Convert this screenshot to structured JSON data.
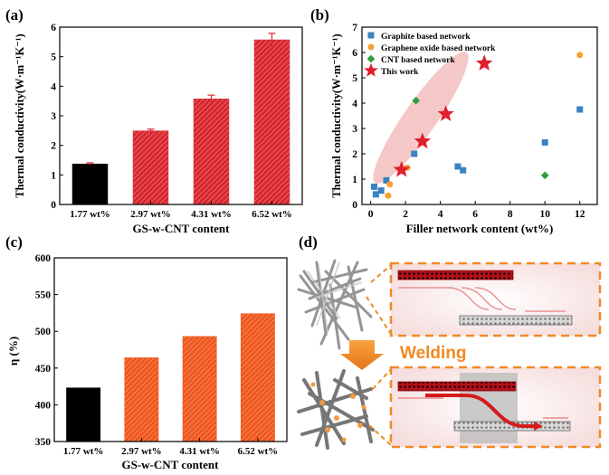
{
  "chart_data": [
    {
      "panel": "(a)",
      "type": "bar",
      "categories": [
        "1.77 wt%",
        "2.97 wt%",
        "4.31 wt%",
        "6.52 wt%"
      ],
      "values": [
        1.37,
        2.49,
        3.57,
        5.57
      ],
      "errors": [
        0.04,
        0.06,
        0.13,
        0.22
      ],
      "colors": [
        "#000000",
        "#d9262e",
        "#d9262e",
        "#d9262e"
      ],
      "xlabel": "GS-w-CNT content",
      "ylabel": "Thermal conductivity(W·m⁻¹K⁻¹)",
      "ylim": [
        0,
        6
      ],
      "yticks": [
        "0",
        "1",
        "2",
        "3",
        "4",
        "5",
        "6"
      ]
    },
    {
      "panel": "(b)",
      "type": "scatter",
      "xlabel": "Filler network content (wt%)",
      "ylabel": "Thermal conductivity(W·m⁻¹K⁻¹)",
      "xlim": [
        -0.5,
        13
      ],
      "ylim": [
        0,
        7
      ],
      "xticks": [
        "0",
        "2",
        "4",
        "6",
        "8",
        "10",
        "12"
      ],
      "yticks": [
        "0",
        "1",
        "2",
        "3",
        "4",
        "5",
        "6",
        "7"
      ],
      "legend_position": "top-left",
      "series": [
        {
          "name": "Graphite based network",
          "marker": "square",
          "color": "#3b82c4",
          "points": [
            [
              0.2,
              0.7
            ],
            [
              0.3,
              0.4
            ],
            [
              0.6,
              0.55
            ],
            [
              0.9,
              0.95
            ],
            [
              2.5,
              2.0
            ],
            [
              5.0,
              1.5
            ],
            [
              5.3,
              1.35
            ],
            [
              10.0,
              2.45
            ],
            [
              12.0,
              3.75
            ]
          ]
        },
        {
          "name": "Graphene oxide based network",
          "marker": "circle",
          "color": "#f5a030",
          "points": [
            [
              1.0,
              0.35
            ],
            [
              1.1,
              0.8
            ],
            [
              2.1,
              1.45
            ],
            [
              12.0,
              5.9
            ]
          ]
        },
        {
          "name": "CNT based network",
          "marker": "diamond",
          "color": "#2e9e3e",
          "points": [
            [
              1.8,
              1.35
            ],
            [
              2.6,
              4.1
            ],
            [
              10.0,
              1.15
            ]
          ]
        },
        {
          "name": "This work",
          "marker": "star",
          "color": "#e0202a",
          "points": [
            [
              1.77,
              1.37
            ],
            [
              2.97,
              2.49
            ],
            [
              4.31,
              3.57
            ],
            [
              6.52,
              5.57
            ]
          ]
        }
      ]
    },
    {
      "panel": "(c)",
      "type": "bar",
      "categories": [
        "1.77 wt%",
        "2.97 wt%",
        "4.31 wt%",
        "6.52 wt%"
      ],
      "values": [
        423,
        464,
        493,
        524
      ],
      "colors": [
        "#000000",
        "#f0571e",
        "#f0571e",
        "#f0571e"
      ],
      "xlabel": "GS-w-CNT content",
      "ylabel": "η (%)",
      "ylim": [
        350,
        600
      ],
      "yticks": [
        "350",
        "400",
        "450",
        "500",
        "550",
        "600"
      ]
    }
  ],
  "panel_labels": {
    "a": "(a)",
    "b": "(b)",
    "c": "(c)",
    "d": "(d)"
  },
  "diagram": {
    "welding_label": "Welding",
    "accent": "#f08a24"
  }
}
